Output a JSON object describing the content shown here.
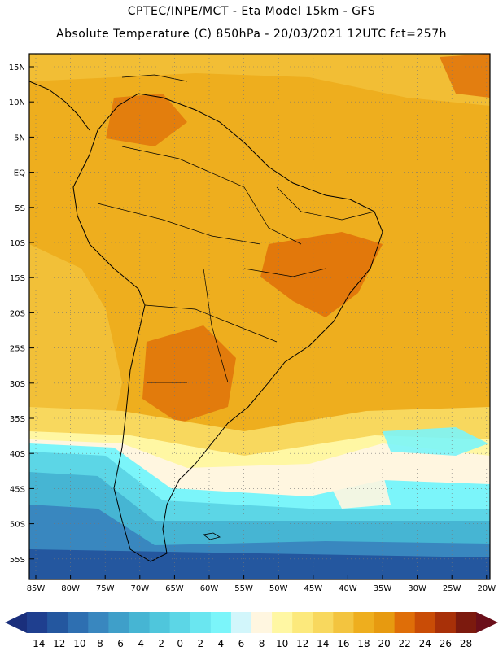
{
  "header": {
    "line1": "CPTEC/INPE/MCT -  Eta Model 15km - GFS",
    "line2": "Absolute Temperature (C) 850hPa - 20/03/2021 12UTC fct=257h"
  },
  "map": {
    "lat_labels": [
      "15N",
      "10N",
      "5N",
      "EQ",
      "5S",
      "10S",
      "15S",
      "20S",
      "25S",
      "30S",
      "35S",
      "40S",
      "45S",
      "50S",
      "55S"
    ],
    "lon_labels": [
      "85W",
      "80W",
      "75W",
      "70W",
      "65W",
      "60W",
      "55W",
      "50W",
      "45W",
      "40W",
      "35W",
      "30W",
      "25W",
      "20W"
    ],
    "grid": "dotted",
    "region": "South America"
  },
  "colorbar": {
    "labels": [
      "-14",
      "-12",
      "-10",
      "-8",
      "-6",
      "-4",
      "-2",
      "0",
      "2",
      "4",
      "6",
      "8",
      "10",
      "12",
      "14",
      "16",
      "18",
      "20",
      "22",
      "24",
      "26",
      "28"
    ],
    "colors": [
      "#1f3f8f",
      "#24579f",
      "#2e6fb1",
      "#3987bf",
      "#3f9fc9",
      "#46b5d3",
      "#4fc6dc",
      "#5cd6e6",
      "#6ae6f0",
      "#7bf5fa",
      "#d2f6fb",
      "#fff6e0",
      "#fff7a3",
      "#fce97c",
      "#f8d85e",
      "#f3c43f",
      "#eeae1e",
      "#e79a10",
      "#df6e08",
      "#c94c06",
      "#a83008",
      "#7c1a0e"
    ],
    "left_arrow_color": "#1a2f7c",
    "right_arrow_color": "#6b0f1a"
  }
}
